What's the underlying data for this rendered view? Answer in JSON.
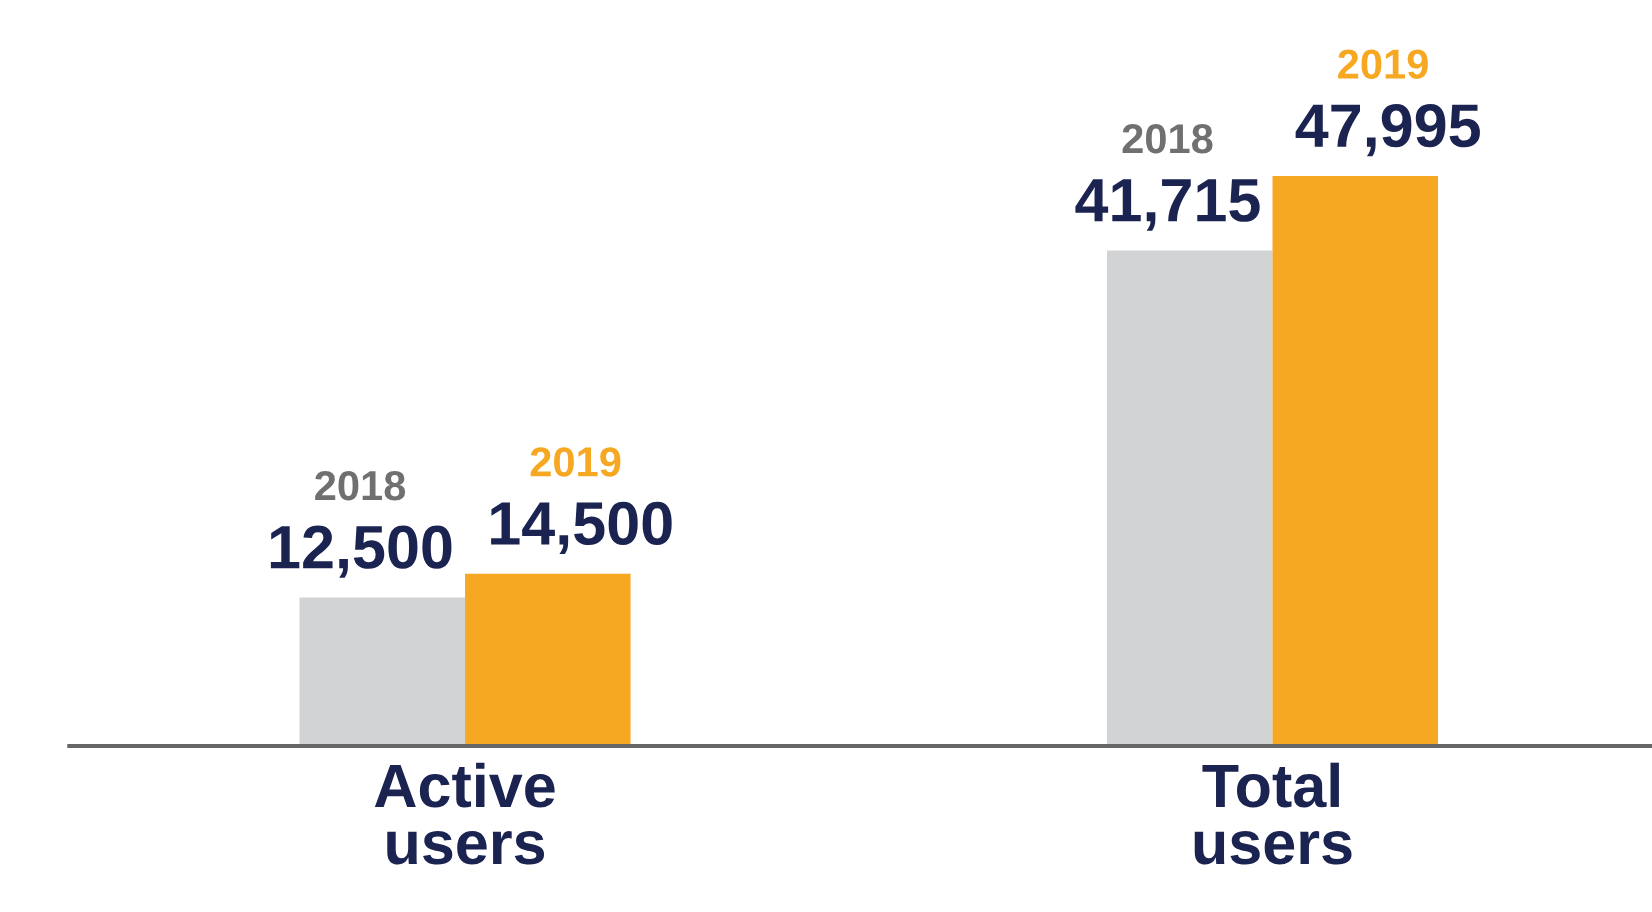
{
  "chart_data": {
    "type": "bar",
    "categories": [
      "Active users",
      "Total users"
    ],
    "series": [
      {
        "name": "2018",
        "color": "#d1d3d4",
        "values": [
          12500,
          41715
        ],
        "value_labels": [
          "12,500",
          "41,715"
        ]
      },
      {
        "name": "2019",
        "color": "#f7a823",
        "values": [
          14500,
          47995
        ],
        "value_labels": [
          "14,500",
          "47,995"
        ]
      }
    ],
    "grid": false,
    "legend": false,
    "tick_labels": "x"
  }
}
